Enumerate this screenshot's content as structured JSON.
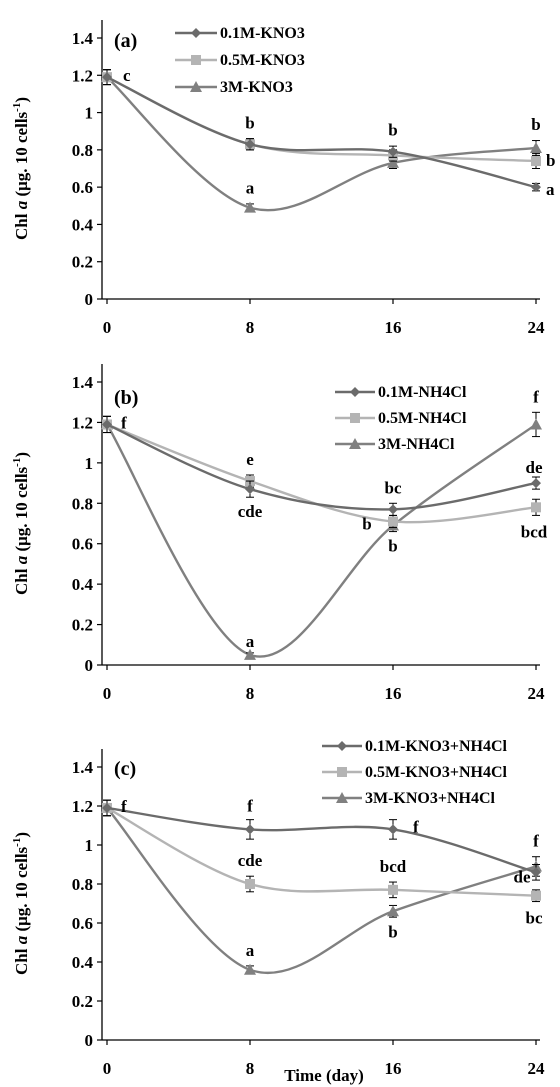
{
  "figure": {
    "ylabel_prefix": "Chl ",
    "ylabel_italic": "a",
    "ylabel_rest": " (μg. 10 cells",
    "ylabel_sup": "-1",
    "ylabel_close": ")",
    "xlabel": "Time (day)"
  },
  "chart_data": [
    {
      "type": "line",
      "title": "",
      "panel_label": "(a)",
      "xlabel": "",
      "ylabel": "Chl a (μg. 10 cells-1)",
      "x": [
        0,
        8,
        16,
        24
      ],
      "ylim": [
        0,
        1.4
      ],
      "yticks": [
        "0",
        "0.2",
        "0.4",
        "0.6",
        "0.8",
        "1",
        "1.2",
        "1.4"
      ],
      "xticks": [
        "0",
        "8",
        "16",
        "24"
      ],
      "legend_position": "top-center",
      "series": [
        {
          "name": "0.1M-KNO3",
          "marker": "diamond",
          "color": "#6b6b6b",
          "values": [
            1.19,
            0.83,
            0.79,
            0.6
          ],
          "errors": [
            0.04,
            0.03,
            0.03,
            0.02
          ]
        },
        {
          "name": "0.5M-KNO3",
          "marker": "square",
          "color": "#b4b4b4",
          "values": [
            1.19,
            0.83,
            0.77,
            0.74
          ],
          "errors": [
            0.04,
            0.03,
            0.03,
            0.04
          ]
        },
        {
          "name": "3M-KNO3",
          "marker": "triangle",
          "color": "#808080",
          "values": [
            1.19,
            0.49,
            0.73,
            0.81
          ],
          "errors": [
            0.04,
            0.02,
            0.03,
            0.04
          ]
        }
      ],
      "annotations": [
        {
          "text": "c",
          "x": 0,
          "y": 1.19
        },
        {
          "text": "b",
          "x": 8,
          "y": 0.83
        },
        {
          "text": "a",
          "x": 8,
          "y": 0.49
        },
        {
          "text": "b",
          "x": 16,
          "y": 0.79
        },
        {
          "text": "b",
          "x": 24,
          "y": 0.81
        },
        {
          "text": "b",
          "x": 24,
          "y": 0.74
        },
        {
          "text": "a",
          "x": 24,
          "y": 0.6
        }
      ]
    },
    {
      "type": "line",
      "title": "",
      "panel_label": "(b)",
      "xlabel": "",
      "ylabel": "Chl a (μg. 10 cells-1)",
      "x": [
        0,
        8,
        16,
        24
      ],
      "ylim": [
        0,
        1.4
      ],
      "yticks": [
        "0",
        "0.2",
        "0.4",
        "0.6",
        "0.8",
        "1",
        "1.2",
        "1.4"
      ],
      "xticks": [
        "0",
        "8",
        "16",
        "24"
      ],
      "legend_position": "top-right",
      "series": [
        {
          "name": "0.1M-NH4Cl",
          "marker": "diamond",
          "color": "#6b6b6b",
          "values": [
            1.19,
            0.87,
            0.77,
            0.9
          ],
          "errors": [
            0.04,
            0.04,
            0.03,
            0.03
          ]
        },
        {
          "name": "0.5M-NH4Cl",
          "marker": "square",
          "color": "#b4b4b4",
          "values": [
            1.19,
            0.91,
            0.71,
            0.78
          ],
          "errors": [
            0.04,
            0.03,
            0.03,
            0.04
          ]
        },
        {
          "name": "3M-NH4Cl",
          "marker": "triangle",
          "color": "#808080",
          "values": [
            1.19,
            0.05,
            0.69,
            1.19
          ],
          "errors": [
            0.04,
            0.01,
            0.03,
            0.06
          ]
        }
      ],
      "annotations": [
        {
          "text": "f",
          "x": 0,
          "y": 1.19
        },
        {
          "text": "e",
          "x": 8,
          "y": 0.91
        },
        {
          "text": "cde",
          "x": 8,
          "y": 0.87
        },
        {
          "text": "a",
          "x": 8,
          "y": 0.05
        },
        {
          "text": "bc",
          "x": 16,
          "y": 0.77
        },
        {
          "text": "b",
          "x": 16,
          "y": 0.71
        },
        {
          "text": "b",
          "x": 16,
          "y": 0.69
        },
        {
          "text": "f",
          "x": 24,
          "y": 1.19
        },
        {
          "text": "de",
          "x": 24,
          "y": 0.9
        },
        {
          "text": "bcd",
          "x": 24,
          "y": 0.78
        }
      ]
    },
    {
      "type": "line",
      "title": "",
      "panel_label": "(c)",
      "xlabel": "Time (day)",
      "ylabel": "Chl a (μg. 10 cells-1)",
      "x": [
        0,
        8,
        16,
        24
      ],
      "ylim": [
        0,
        1.4
      ],
      "yticks": [
        "0",
        "0.2",
        "0.4",
        "0.6",
        "0.8",
        "1",
        "1.2",
        "1.4"
      ],
      "xticks": [
        "0",
        "8",
        "16",
        "24"
      ],
      "legend_position": "top-right",
      "series": [
        {
          "name": "0.1M-KNO3+NH4Cl",
          "marker": "diamond",
          "color": "#6b6b6b",
          "values": [
            1.19,
            1.08,
            1.08,
            0.86
          ],
          "errors": [
            0.04,
            0.05,
            0.05,
            0.04
          ]
        },
        {
          "name": "0.5M-KNO3+NH4Cl",
          "marker": "square",
          "color": "#b4b4b4",
          "values": [
            1.19,
            0.8,
            0.77,
            0.74
          ],
          "errors": [
            0.04,
            0.04,
            0.04,
            0.03
          ]
        },
        {
          "name": "3M-KNO3+NH4Cl",
          "marker": "triangle",
          "color": "#808080",
          "values": [
            1.19,
            0.36,
            0.66,
            0.89
          ],
          "errors": [
            0.04,
            0.02,
            0.03,
            0.05
          ]
        }
      ],
      "annotations": [
        {
          "text": "f",
          "x": 0,
          "y": 1.19
        },
        {
          "text": "f",
          "x": 8,
          "y": 1.08
        },
        {
          "text": "cde",
          "x": 8,
          "y": 0.8
        },
        {
          "text": "a",
          "x": 8,
          "y": 0.36
        },
        {
          "text": "bcd",
          "x": 16,
          "y": 0.77
        },
        {
          "text": "f",
          "x": 16,
          "y": 1.08
        },
        {
          "text": "b",
          "x": 16,
          "y": 0.66
        },
        {
          "text": "f",
          "x": 24,
          "y": 0.89
        },
        {
          "text": "de",
          "x": 24,
          "y": 0.86
        },
        {
          "text": "bc",
          "x": 24,
          "y": 0.74
        }
      ]
    }
  ]
}
